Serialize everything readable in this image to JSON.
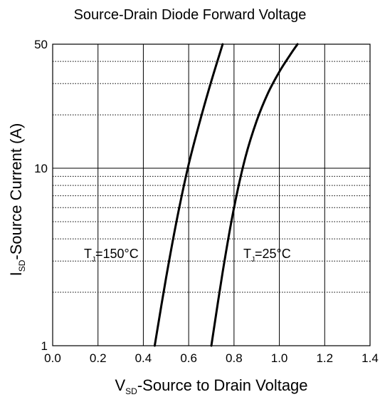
{
  "chart_data": {
    "type": "line",
    "title": "Source-Drain Diode Forward Voltage",
    "xlabel": {
      "pre": "V",
      "sub": "SD",
      "post": "-Source to Drain Voltage"
    },
    "ylabel": {
      "pre": "I",
      "sub": "SD",
      "post": "-Source Current (A)"
    },
    "xlim": [
      0,
      1.4
    ],
    "ylim": [
      1,
      50
    ],
    "yscale": "log",
    "grid": true,
    "x_ticks": [
      "0.0",
      "0.2",
      "0.4",
      "0.6",
      "0.8",
      "1.0",
      "1.2",
      "1.4"
    ],
    "y_ticks": [
      "1",
      "10",
      "50"
    ],
    "series": [
      {
        "name": {
          "pre": "T",
          "sub": "J",
          "post": "=150°C"
        },
        "x": [
          0.45,
          0.5,
          0.55,
          0.6,
          0.65,
          0.7,
          0.75
        ],
        "y": [
          1,
          2.4,
          5.3,
          10.5,
          18.5,
          31,
          50
        ]
      },
      {
        "name": {
          "pre": "T",
          "sub": "J",
          "post": "=25°C"
        },
        "x": [
          0.7,
          0.75,
          0.8,
          0.85,
          0.9,
          0.95,
          1.0,
          1.05,
          1.08
        ],
        "y": [
          1,
          2.6,
          6.0,
          11.5,
          18.5,
          26.5,
          35,
          44,
          50
        ]
      }
    ]
  }
}
